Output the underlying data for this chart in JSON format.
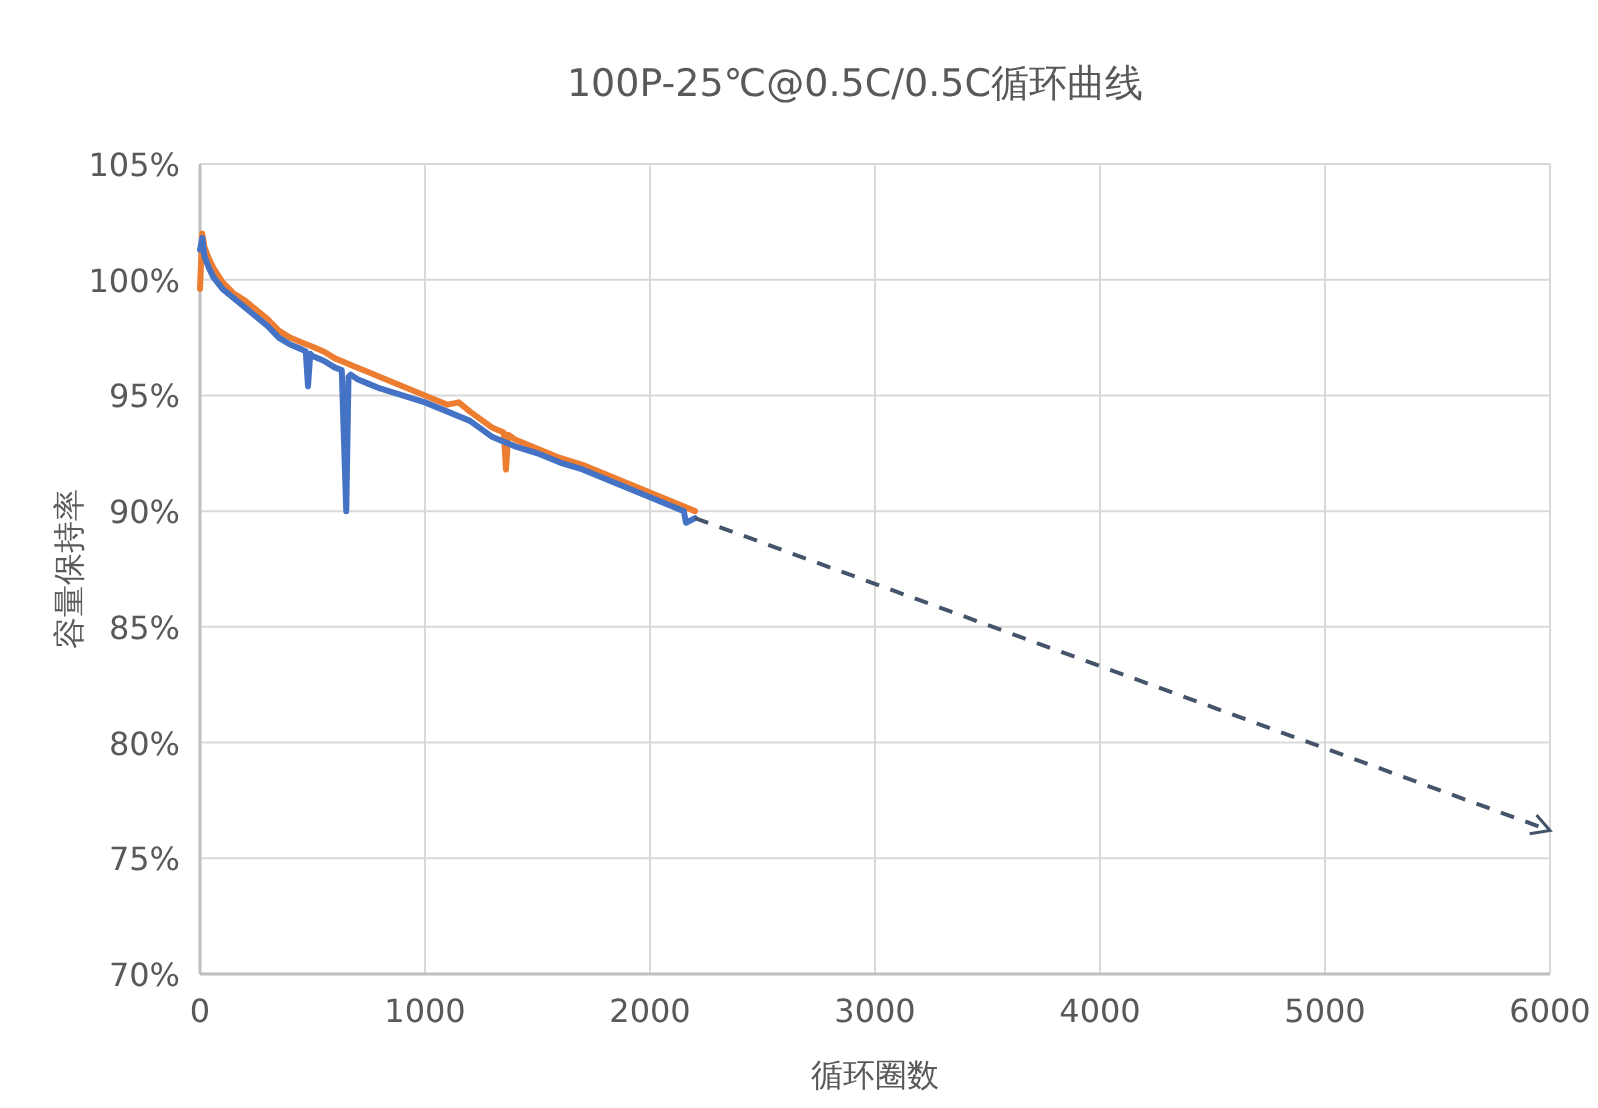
{
  "chart_data": {
    "type": "line",
    "title": "100P-25℃@0.5C/0.5C循环曲线",
    "xlabel": "循环圈数",
    "ylabel": "容量保持率",
    "xlim": [
      0,
      6000
    ],
    "xticks": [
      0,
      1000,
      2000,
      3000,
      4000,
      5000,
      6000
    ],
    "ylim": [
      70,
      105
    ],
    "yticks": [
      {
        "value": 70,
        "label": "70%"
      },
      {
        "value": 75,
        "label": "75%"
      },
      {
        "value": 80,
        "label": "80%"
      },
      {
        "value": 85,
        "label": "85%"
      },
      {
        "value": 90,
        "label": "90%"
      },
      {
        "value": 95,
        "label": "95%"
      },
      {
        "value": 100,
        "label": "100%"
      },
      {
        "value": 105,
        "label": "105%"
      }
    ],
    "grid": true,
    "marker": "none",
    "series": [
      {
        "color": "#ed7d31",
        "x": [
          0,
          10,
          20,
          40,
          60,
          100,
          150,
          200,
          250,
          300,
          350,
          400,
          450,
          500,
          550,
          600,
          650,
          700,
          750,
          800,
          900,
          1000,
          1100,
          1150,
          1200,
          1300,
          1350,
          1360,
          1370,
          1400,
          1500,
          1600,
          1700,
          1800,
          1900,
          2000,
          2100,
          2200
        ],
        "values": [
          99.6,
          102.0,
          101.4,
          100.9,
          100.5,
          99.9,
          99.4,
          99.1,
          98.7,
          98.3,
          97.8,
          97.5,
          97.3,
          97.1,
          96.9,
          96.6,
          96.4,
          96.2,
          96.0,
          95.8,
          95.4,
          95.0,
          94.6,
          94.7,
          94.3,
          93.6,
          93.4,
          91.8,
          93.3,
          93.1,
          92.7,
          92.3,
          92.0,
          91.6,
          91.2,
          90.8,
          90.4,
          90.0
        ]
      },
      {
        "color": "#4472c4",
        "x": [
          0,
          10,
          20,
          40,
          60,
          100,
          150,
          200,
          250,
          300,
          350,
          400,
          450,
          470,
          480,
          490,
          500,
          550,
          600,
          630,
          640,
          650,
          660,
          670,
          700,
          750,
          800,
          900,
          1000,
          1100,
          1200,
          1300,
          1400,
          1500,
          1600,
          1700,
          1800,
          1900,
          2000,
          2100,
          2150,
          2160,
          2200
        ],
        "values": [
          101.3,
          101.8,
          101.0,
          100.5,
          100.1,
          99.6,
          99.2,
          98.8,
          98.4,
          98.0,
          97.5,
          97.2,
          97.0,
          96.9,
          95.4,
          96.8,
          96.7,
          96.5,
          96.2,
          96.1,
          93.0,
          90.0,
          95.8,
          95.9,
          95.7,
          95.5,
          95.3,
          95.0,
          94.7,
          94.3,
          93.9,
          93.2,
          92.8,
          92.5,
          92.1,
          91.8,
          91.4,
          91.0,
          90.6,
          90.2,
          90.0,
          89.5,
          89.7
        ]
      },
      {
        "color": "#44546a",
        "line_style": "dashed",
        "x": [
          2200,
          6000
        ],
        "values": [
          89.7,
          76.2
        ]
      }
    ]
  }
}
